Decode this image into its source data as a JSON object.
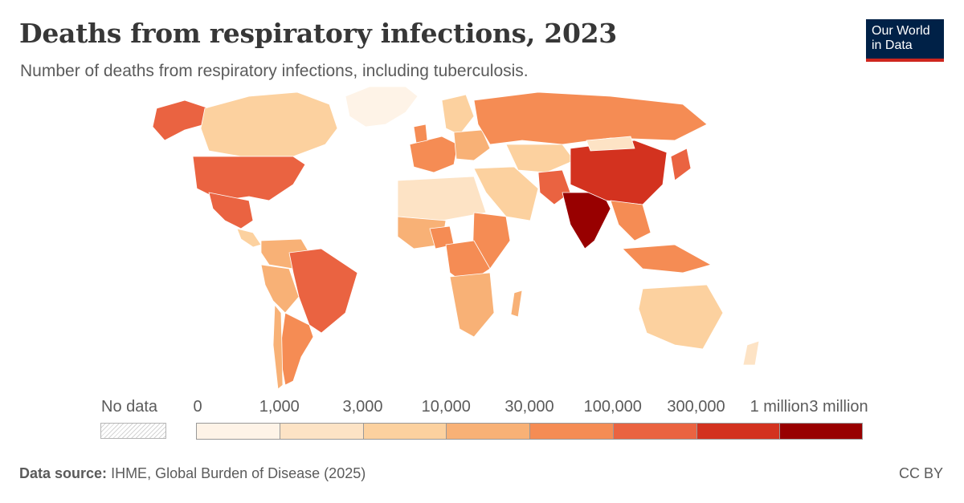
{
  "header": {
    "title": "Deaths from respiratory infections, 2023",
    "subtitle": "Number of deaths from respiratory infections, including tuberculosis."
  },
  "logo": {
    "line1": "Our World",
    "line2": "in Data"
  },
  "legend": {
    "no_data_label": "No data",
    "tick_labels": [
      "0",
      "1,000",
      "3,000",
      "10,000",
      "30,000",
      "100,000",
      "300,000",
      "1 million",
      "3 million"
    ],
    "colors": [
      "#fef3e7",
      "#fde3c5",
      "#fcd19f",
      "#f8b176",
      "#f58c54",
      "#ea6341",
      "#d3321f",
      "#980000"
    ]
  },
  "map_regions": [
    {
      "name": "Canada",
      "bin": 2
    },
    {
      "name": "United States",
      "bin": 5
    },
    {
      "name": "Alaska",
      "bin": 5
    },
    {
      "name": "Greenland",
      "bin": 0
    },
    {
      "name": "Mexico",
      "bin": 5
    },
    {
      "name": "Brazil",
      "bin": 5
    },
    {
      "name": "Argentina",
      "bin": 4
    },
    {
      "name": "Russia",
      "bin": 4
    },
    {
      "name": "China",
      "bin": 6
    },
    {
      "name": "India",
      "bin": 7
    },
    {
      "name": "Nigeria",
      "bin": 4
    },
    {
      "name": "DR Congo",
      "bin": 4
    },
    {
      "name": "Australia",
      "bin": 2
    },
    {
      "name": "Indonesia",
      "bin": 4
    },
    {
      "name": "Pakistan",
      "bin": 5
    }
  ],
  "footer": {
    "source_label": "Data source:",
    "source_text": "IHME, Global Burden of Disease (2025)",
    "license": "CC BY"
  }
}
